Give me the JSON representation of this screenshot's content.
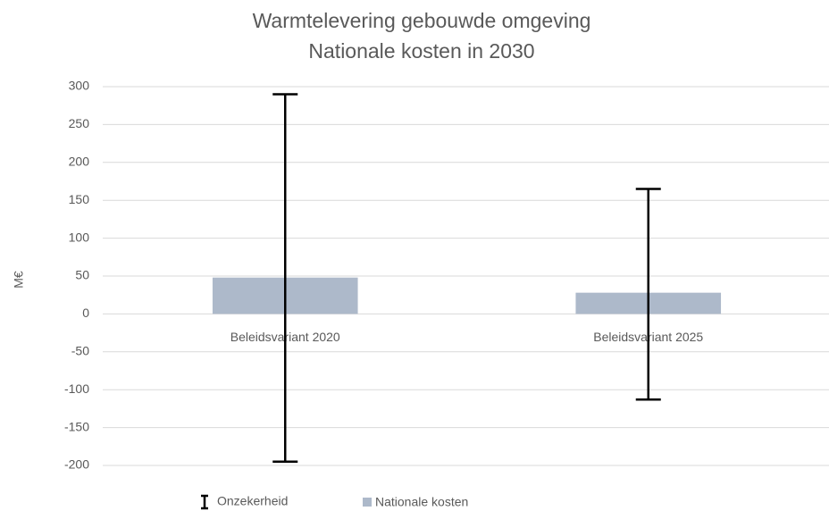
{
  "chart_data": {
    "type": "bar",
    "title": "Warmtelevering gebouwde omgeving",
    "subtitle": "Nationale kosten in 2030",
    "y_label": "M€",
    "categories": [
      "Beleidsvariant 2020",
      "Beleidsvariant 2025"
    ],
    "series": [
      {
        "name": "Nationale kosten",
        "color": "#adb9ca",
        "values": [
          48,
          28
        ]
      }
    ],
    "error_bars": {
      "name": "Onzekerheid",
      "color": "#000000",
      "low": [
        -195,
        -113
      ],
      "high": [
        290,
        165
      ]
    },
    "ylim": [
      -200,
      300
    ],
    "yticks": [
      -200,
      -150,
      -100,
      -50,
      0,
      50,
      100,
      150,
      200,
      250,
      300
    ],
    "grid": true,
    "legend": "bottom"
  }
}
